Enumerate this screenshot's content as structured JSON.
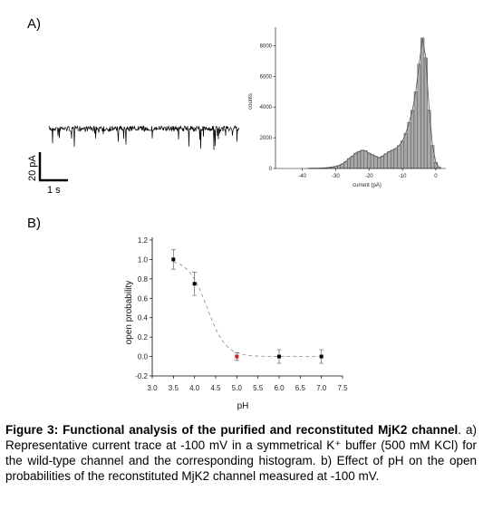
{
  "panels": {
    "a_label": "A)",
    "b_label": "B)"
  },
  "scalebar": {
    "y_label": "20 pA",
    "x_label": "1 s"
  },
  "chart_data": [
    {
      "type": "bar",
      "title": "",
      "xlabel": "current (pA)",
      "ylabel": "counts",
      "xlim": [
        -48,
        3
      ],
      "ylim": [
        0,
        9200
      ],
      "x_ticks": [
        "-40",
        "-30",
        "-20",
        "-10",
        "0"
      ],
      "y_ticks": [
        "0",
        "2000",
        "4000",
        "6000",
        "8000"
      ],
      "bin_width": 1,
      "bins_x": [
        -38,
        -37,
        -36,
        -35,
        -34,
        -33,
        -32,
        -31,
        -30,
        -29,
        -28,
        -27,
        -26,
        -25,
        -24,
        -23,
        -22,
        -21,
        -20,
        -19,
        -18,
        -17,
        -16,
        -15,
        -14,
        -13,
        -12,
        -11,
        -10,
        -9,
        -8,
        -7,
        -6,
        -5,
        -4,
        -3,
        -2,
        -1,
        0,
        1
      ],
      "counts": [
        10,
        15,
        20,
        25,
        35,
        50,
        70,
        100,
        140,
        200,
        300,
        450,
        650,
        800,
        1000,
        1100,
        1200,
        1150,
        1000,
        900,
        800,
        700,
        800,
        950,
        1100,
        1200,
        1300,
        1500,
        1800,
        2300,
        3000,
        3800,
        5000,
        6800,
        8500,
        7200,
        3800,
        1500,
        400,
        100
      ],
      "grid": false,
      "fit_curve": true
    },
    {
      "type": "scatter",
      "title": "",
      "xlabel": "pH",
      "ylabel": "open probability",
      "xlim": [
        3.0,
        7.5
      ],
      "ylim": [
        -0.2,
        1.2
      ],
      "x_ticks": [
        "3.0",
        "3.5",
        "4.0",
        "4.5",
        "5.0",
        "5.5",
        "6.0",
        "6.5",
        "7.0",
        "7.5"
      ],
      "y_ticks": [
        "-0.2",
        "0.0",
        "0.2",
        "0.4",
        "0.6",
        "0.8",
        "1.0",
        "1.2"
      ],
      "x": [
        3.5,
        4.0,
        5.0,
        6.0,
        7.0
      ],
      "y": [
        1.0,
        0.75,
        0.0,
        0.0,
        0.0
      ],
      "error": [
        0.1,
        0.12,
        0.04,
        0.07,
        0.07
      ],
      "point_colors": [
        "#000000",
        "#000000",
        "#cc2222",
        "#000000",
        "#000000"
      ],
      "fit_curve": "sigmoid, dashed grey",
      "grid": false
    }
  ],
  "caption": {
    "fig_label": "Figure 3",
    "title_bold": ": Functional analysis of the purified and reconstituted MjK2 channel",
    "text": ". a) Representative current trace at -100 mV in a symmetrical K⁺ buffer (500 mM KCl) for the wild-type channel and the corresponding histogram. b) Effect of pH on the open probabilities of the reconstituted MjK2 channel measured at -100 mV."
  },
  "colors": {
    "bar_fill": "#a8a8a8",
    "fit_line": "#555555",
    "dashed_fit": "#999999",
    "highlight_point": "#cc2222"
  }
}
